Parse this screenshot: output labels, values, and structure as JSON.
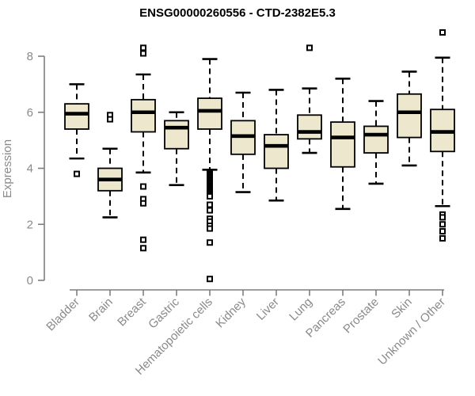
{
  "window": {
    "title": "ENSG00000260556 - CTD-2382E5.3"
  },
  "chart_data": {
    "type": "boxplot",
    "title": "ENSG00000260556 - CTD-2382E5.3",
    "xlabel": "",
    "ylabel": "Expression",
    "ylim": [
      0,
      9.2
    ],
    "yticks": [
      0,
      2,
      4,
      6,
      8
    ],
    "grid": false,
    "legend": "none",
    "categories": [
      "Bladder",
      "Brain",
      "Breast",
      "Gastric",
      "Hematopoietic cells",
      "Kidney",
      "Liver",
      "Lung",
      "Pancreas",
      "Prostate",
      "Skin",
      "Unknown / Other"
    ],
    "series": [
      {
        "name": "Bladder",
        "low": 4.35,
        "q1": 5.4,
        "median": 5.95,
        "q3": 6.3,
        "high": 7.0,
        "outliers_high": [],
        "outliers_low": [
          3.8
        ]
      },
      {
        "name": "Brain",
        "low": 2.25,
        "q1": 3.2,
        "median": 3.6,
        "q3": 4.0,
        "high": 4.7,
        "outliers_high": [
          5.9,
          5.75
        ],
        "outliers_low": []
      },
      {
        "name": "Breast",
        "low": 3.85,
        "q1": 5.3,
        "median": 6.0,
        "q3": 6.45,
        "high": 7.35,
        "outliers_high": [
          8.3,
          8.1
        ],
        "outliers_low": [
          3.35,
          2.9,
          2.75,
          1.45,
          1.15
        ]
      },
      {
        "name": "Gastric",
        "low": 3.4,
        "q1": 4.7,
        "median": 5.45,
        "q3": 5.7,
        "high": 6.0,
        "outliers_high": [],
        "outliers_low": []
      },
      {
        "name": "Hematopoietic cells",
        "low": 3.95,
        "q1": 5.4,
        "median": 6.05,
        "q3": 6.5,
        "high": 7.9,
        "outliers_high": [],
        "outliers_low": [
          3.85,
          3.8,
          3.75,
          3.7,
          3.65,
          3.6,
          3.55,
          3.5,
          3.45,
          3.4,
          3.35,
          3.3,
          3.25,
          3.2,
          3.15,
          3.1,
          3.05,
          3.0,
          2.7,
          2.5,
          2.2,
          2.1,
          1.95,
          1.85,
          1.35,
          0.05
        ]
      },
      {
        "name": "Kidney",
        "low": 3.15,
        "q1": 4.5,
        "median": 5.15,
        "q3": 5.7,
        "high": 6.7,
        "outliers_high": [],
        "outliers_low": []
      },
      {
        "name": "Liver",
        "low": 2.85,
        "q1": 4.0,
        "median": 4.8,
        "q3": 5.2,
        "high": 6.8,
        "outliers_high": [],
        "outliers_low": []
      },
      {
        "name": "Lung",
        "low": 4.55,
        "q1": 5.05,
        "median": 5.3,
        "q3": 5.9,
        "high": 6.85,
        "outliers_high": [
          8.3
        ],
        "outliers_low": []
      },
      {
        "name": "Pancreas",
        "low": 2.55,
        "q1": 4.05,
        "median": 5.1,
        "q3": 5.65,
        "high": 7.2,
        "outliers_high": [],
        "outliers_low": []
      },
      {
        "name": "Prostate",
        "low": 3.45,
        "q1": 4.55,
        "median": 5.2,
        "q3": 5.5,
        "high": 6.4,
        "outliers_high": [],
        "outliers_low": []
      },
      {
        "name": "Skin",
        "low": 4.1,
        "q1": 5.1,
        "median": 6.0,
        "q3": 6.65,
        "high": 7.45,
        "outliers_high": [],
        "outliers_low": []
      },
      {
        "name": "Unknown / Other",
        "low": 2.65,
        "q1": 4.6,
        "median": 5.3,
        "q3": 6.1,
        "high": 7.95,
        "outliers_high": [
          8.85
        ],
        "outliers_low": [
          2.35,
          2.25,
          2.0,
          1.75,
          1.5
        ]
      }
    ],
    "colors": {
      "box_fill": "#EDE8CD",
      "box_border": "#000000",
      "median": "#000000",
      "whisker": "#000000",
      "outlier_fill": "#FFFFFF",
      "axis": "#7E7E7E",
      "tick_label": "#8A8A8A",
      "title": "#000000",
      "background": "#FFFFFF"
    }
  }
}
